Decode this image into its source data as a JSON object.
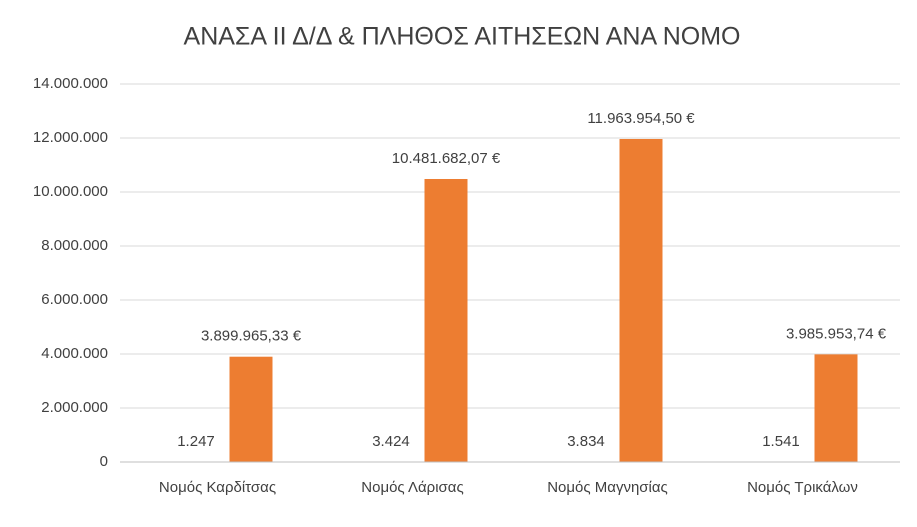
{
  "chart_data": {
    "type": "bar",
    "title": "ΑΝΑΣΑ ΙΙ Δ/Δ & ΠΛΗΘΟΣ ΑΙΤΗΣΕΩΝ ΑΝΑ ΝΟΜΟ",
    "categories": [
      "Νομός Καρδίτσας",
      "Νομός Λάρισας",
      "Νομός Μαγνησίας",
      "Νομός Τρικάλων"
    ],
    "series": [
      {
        "color": "#4472c4",
        "values": [
          1247,
          3424,
          3834,
          1541
        ],
        "value_labels": [
          "1.247",
          "3.424",
          "3.834",
          "1.541"
        ]
      },
      {
        "color": "#ed7d31",
        "values": [
          3899965.33,
          10481682.07,
          11963954.5,
          3985953.74
        ],
        "value_labels": [
          "3.899.965,33 €",
          "10.481.682,07 €",
          "11.963.954,50 €",
          "3.985.953,74 €"
        ]
      }
    ],
    "ylim": [
      0,
      14000000
    ],
    "yticks": [
      0,
      {
        "value": 2000000,
        "label": "2.000.000"
      },
      {
        "value": 4000000,
        "label": "4.000.000"
      },
      {
        "value": 6000000,
        "label": "6.000.000"
      },
      {
        "value": 8000000,
        "label": "8.000.000"
      },
      {
        "value": 10000000,
        "label": "10.000.000"
      },
      {
        "value": 12000000,
        "label": "12.000.000"
      },
      {
        "value": 14000000,
        "label": "14.000.000"
      }
    ],
    "grid": true
  }
}
